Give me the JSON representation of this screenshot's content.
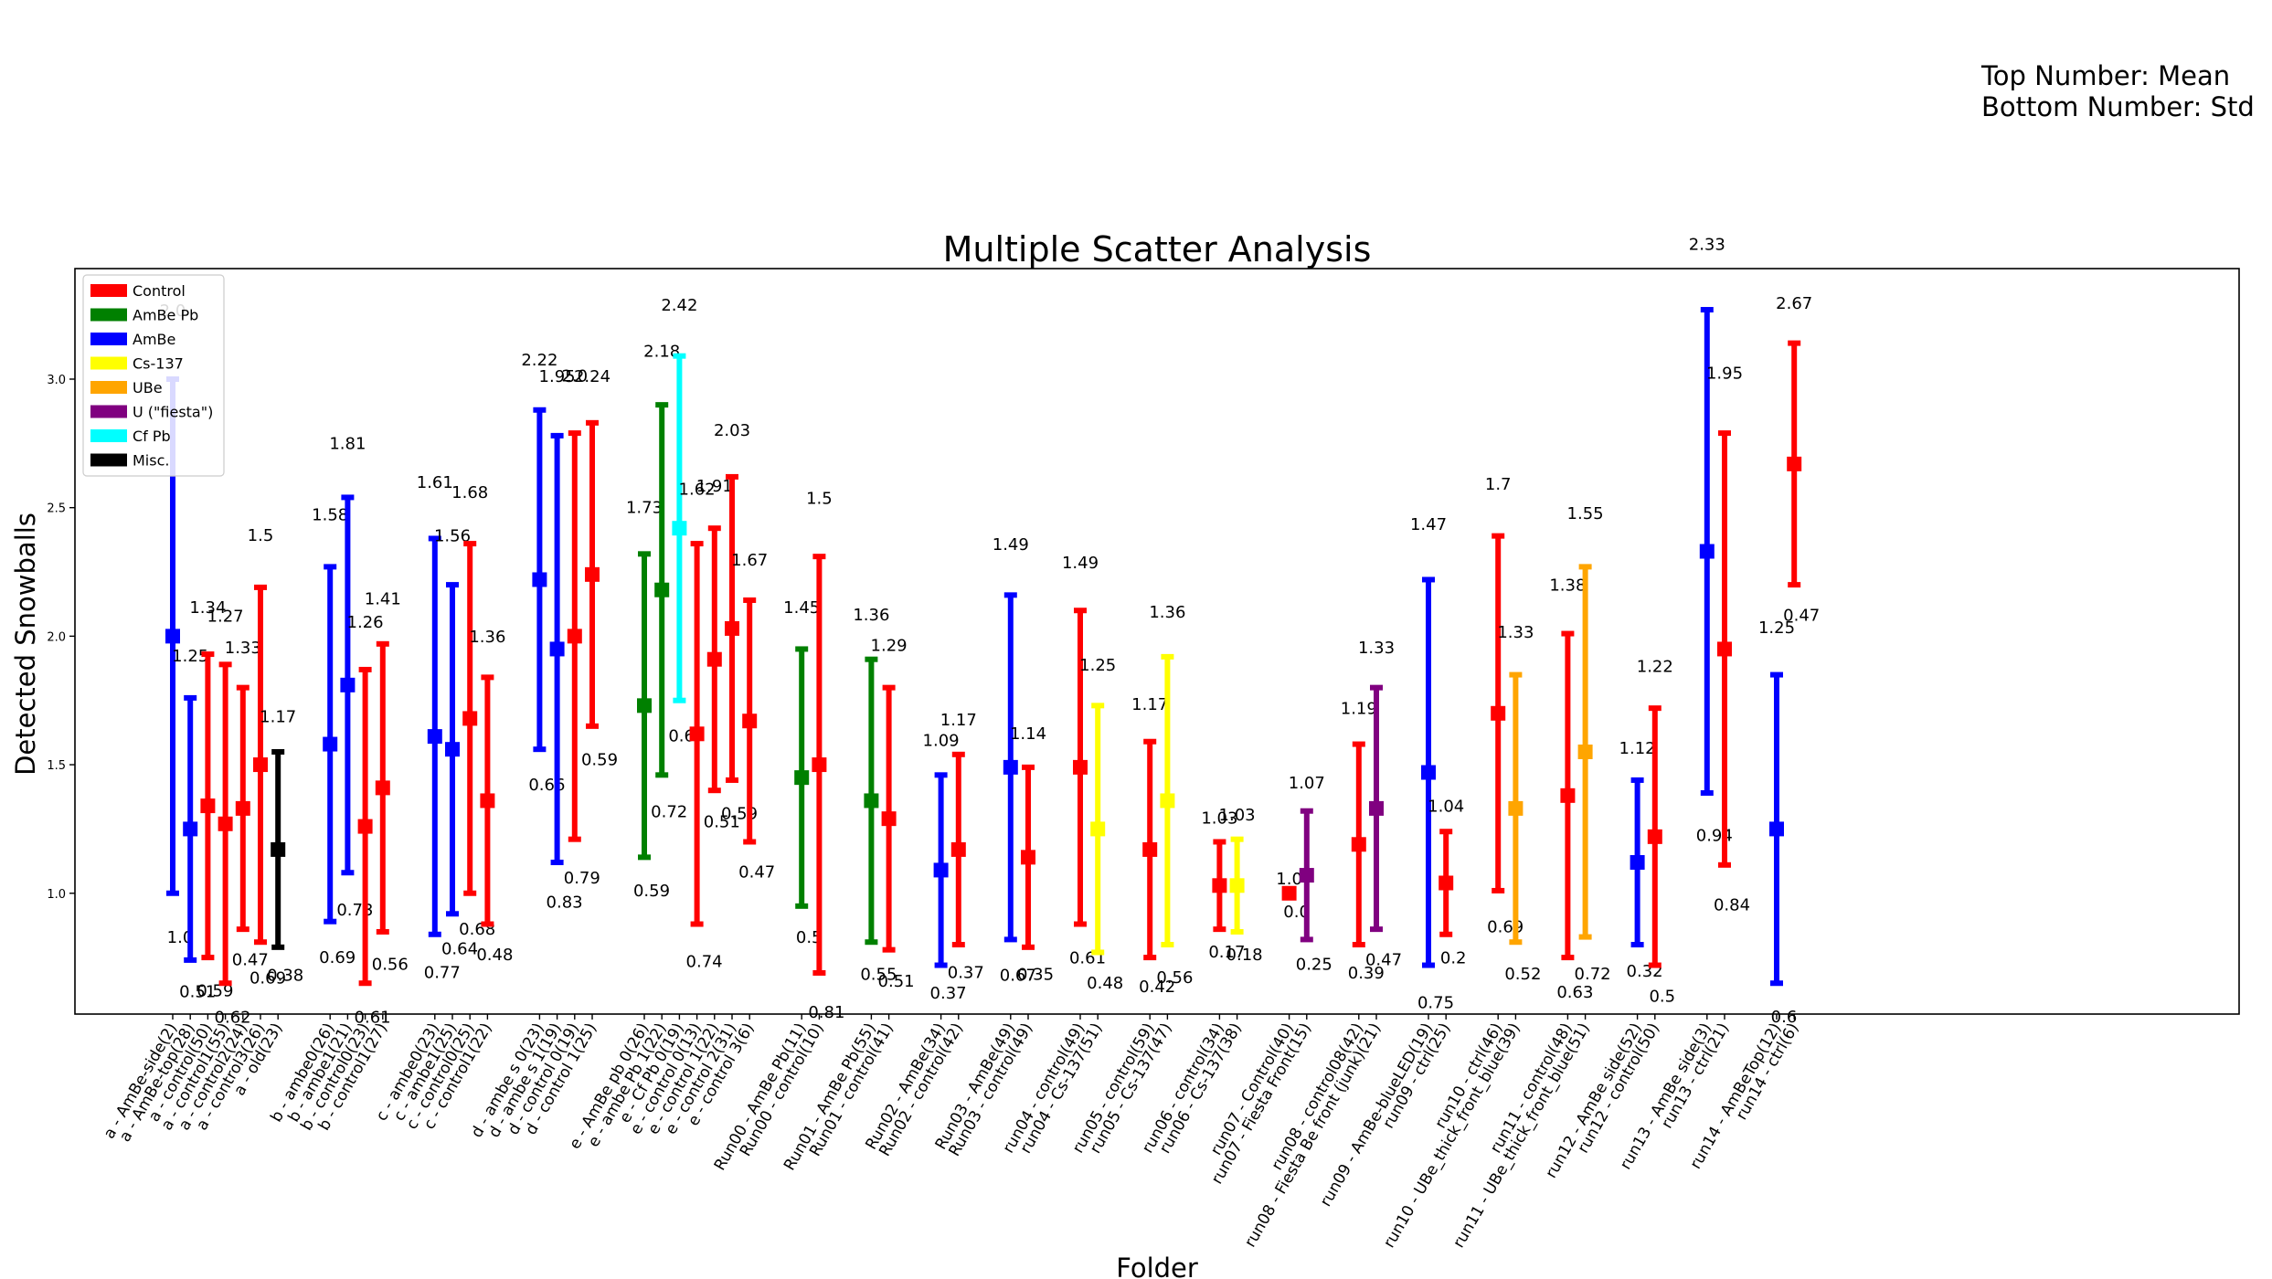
{
  "note": {
    "line1": "Top Number: Mean",
    "line2": "Bottom Number: Std"
  },
  "colors": {
    "Control": "#ff0000",
    "AmBe Pb": "#008000",
    "AmBe": "#0000ff",
    "Cs-137": "#ffff00",
    "UBe": "#ffa500",
    "U (\"fiesta\")": "#800080",
    "Cf Pb": "#00ffff",
    "Misc.": "#000000"
  },
  "chart_data": {
    "type": "scatter",
    "title": "Multiple Scatter Analysis",
    "xlabel": "Folder",
    "ylabel": "Detected Snowballs",
    "ylim": [
      0.53,
      3.43
    ],
    "yticks": [
      "1.0",
      "1.5",
      "2.0",
      "2.5",
      "3.0"
    ],
    "grid": false,
    "legend_position": "top-left",
    "legend": [
      "Control",
      "AmBe Pb",
      "AmBe",
      "Cs-137",
      "UBe",
      "U (\"fiesta\")",
      "Cf Pb",
      "Misc."
    ],
    "groups": [
      {
        "points": [
          {
            "label": "a - AmBe-side(2)",
            "category": "AmBe",
            "mean": 2.0,
            "std": 1.0,
            "mean_label": "2.0",
            "std_label": "1.0"
          },
          {
            "label": "a - AmBe-top(28)",
            "category": "AmBe",
            "mean": 1.25,
            "std": 0.51,
            "mean_label": "1.25",
            "std_label": "0.51"
          },
          {
            "label": "a - control(50)",
            "category": "Control",
            "mean": 1.34,
            "std": 0.59,
            "mean_label": "1.34",
            "std_label": "0.59"
          },
          {
            "label": "a - control1(55)",
            "category": "Control",
            "mean": 1.27,
            "std": 0.62,
            "mean_label": "1.27",
            "std_label": "0.62"
          },
          {
            "label": "a - control2(24)",
            "category": "Control",
            "mean": 1.33,
            "std": 0.47,
            "mean_label": "1.33",
            "std_label": "0.47"
          },
          {
            "label": "a - control3(26)",
            "category": "Control",
            "mean": 1.5,
            "std": 0.69,
            "mean_label": "1.5",
            "std_label": "0.69"
          },
          {
            "label": "a - old(23)",
            "category": "Misc.",
            "mean": 1.17,
            "std": 0.38,
            "mean_label": "1.17",
            "std_label": "0.38"
          }
        ]
      },
      {
        "points": [
          {
            "label": "b - ambe0(26)",
            "category": "AmBe",
            "mean": 1.58,
            "std": 0.69,
            "mean_label": "1.58",
            "std_label": "0.69"
          },
          {
            "label": "b - ambe1(21)",
            "category": "AmBe",
            "mean": 1.81,
            "std": 0.73,
            "mean_label": "1.81",
            "std_label": "0.73"
          },
          {
            "label": "b - control0(23)",
            "category": "Control",
            "mean": 1.26,
            "std": 0.61,
            "mean_label": "1.26",
            "std_label": "0.61"
          },
          {
            "label": "b - control1(27)",
            "category": "Control",
            "mean": 1.41,
            "std": 0.56,
            "mean_label": "1.41",
            "std_label": "0.56"
          }
        ]
      },
      {
        "points": [
          {
            "label": "c - ambe0(23)",
            "category": "AmBe",
            "mean": 1.61,
            "std": 0.77,
            "mean_label": "1.61",
            "std_label": "0.77"
          },
          {
            "label": "c - ambe1(25)",
            "category": "AmBe",
            "mean": 1.56,
            "std": 0.64,
            "mean_label": "1.56",
            "std_label": "0.64"
          },
          {
            "label": "c - control0(25)",
            "category": "Control",
            "mean": 1.68,
            "std": 0.68,
            "mean_label": "1.68",
            "std_label": "0.68"
          },
          {
            "label": "c - control1(22)",
            "category": "Control",
            "mean": 1.36,
            "std": 0.48,
            "mean_label": "1.36",
            "std_label": "0.48"
          }
        ]
      },
      {
        "points": [
          {
            "label": "d - ambe s 0(23)",
            "category": "AmBe",
            "mean": 2.22,
            "std": 0.66,
            "mean_label": "2.22",
            "std_label": "0.66"
          },
          {
            "label": "d - ambe s 1(19)",
            "category": "AmBe",
            "mean": 1.95,
            "std": 0.83,
            "mean_label": "1.95",
            "std_label": "0.83"
          },
          {
            "label": "d - control 0(19)",
            "category": "Control",
            "mean": 2.0,
            "std": 0.79,
            "mean_label": "2.0",
            "std_label": "0.79"
          },
          {
            "label": "d - control 1(25)",
            "category": "Control",
            "mean": 2.24,
            "std": 0.59,
            "mean_label": "2.24",
            "std_label": "0.59"
          }
        ]
      },
      {
        "points": [
          {
            "label": "e - AmBe pb 0(26)",
            "category": "AmBe Pb",
            "mean": 1.73,
            "std": 0.59,
            "mean_label": "1.73",
            "std_label": "0.59"
          },
          {
            "label": "e - ambe Pb 1(22)",
            "category": "AmBe Pb",
            "mean": 2.18,
            "std": 0.72,
            "mean_label": "2.18",
            "std_label": "0.72"
          },
          {
            "label": "e - Cf Pb 0(19)",
            "category": "Cf Pb",
            "mean": 2.42,
            "std": 0.67,
            "mean_label": "2.42",
            "std_label": "0.67"
          },
          {
            "label": "e - control 0(13)",
            "category": "Control",
            "mean": 1.62,
            "std": 0.74,
            "mean_label": "1.62",
            "std_label": "0.74"
          },
          {
            "label": "e - control 1(22)",
            "category": "Control",
            "mean": 1.91,
            "std": 0.51,
            "mean_label": "1.91",
            "std_label": "0.51"
          },
          {
            "label": "e - control 2(31)",
            "category": "Control",
            "mean": 2.03,
            "std": 0.59,
            "mean_label": "2.03",
            "std_label": "0.59"
          },
          {
            "label": "e - control 3(6)",
            "category": "Control",
            "mean": 1.67,
            "std": 0.47,
            "mean_label": "1.67",
            "std_label": "0.47"
          }
        ]
      },
      {
        "points": [
          {
            "label": "Run00 - AmBe Pb(11)",
            "category": "AmBe Pb",
            "mean": 1.45,
            "std": 0.5,
            "mean_label": "1.45",
            "std_label": "0.5"
          },
          {
            "label": "Run00 - control(10)",
            "category": "Control",
            "mean": 1.5,
            "std": 0.81,
            "mean_label": "1.5",
            "std_label": "0.81"
          }
        ]
      },
      {
        "points": [
          {
            "label": "Run01 - AmBe Pb(55)",
            "category": "AmBe Pb",
            "mean": 1.36,
            "std": 0.55,
            "mean_label": "1.36",
            "std_label": "0.55"
          },
          {
            "label": "Run01 - control(41)",
            "category": "Control",
            "mean": 1.29,
            "std": 0.51,
            "mean_label": "1.29",
            "std_label": "0.51"
          }
        ]
      },
      {
        "points": [
          {
            "label": "Run02 - AmBe(34)",
            "category": "AmBe",
            "mean": 1.09,
            "std": 0.37,
            "mean_label": "1.09",
            "std_label": "0.37"
          },
          {
            "label": "Run02 - control(42)",
            "category": "Control",
            "mean": 1.17,
            "std": 0.37,
            "mean_label": "1.17",
            "std_label": "0.37"
          }
        ]
      },
      {
        "points": [
          {
            "label": "Run03 - AmBe(49)",
            "category": "AmBe",
            "mean": 1.49,
            "std": 0.67,
            "mean_label": "1.49",
            "std_label": "0.67"
          },
          {
            "label": "Run03 - control(49)",
            "category": "Control",
            "mean": 1.14,
            "std": 0.35,
            "mean_label": "1.14",
            "std_label": "0.35"
          }
        ]
      },
      {
        "points": [
          {
            "label": "run04 - control(49)",
            "category": "Control",
            "mean": 1.49,
            "std": 0.61,
            "mean_label": "1.49",
            "std_label": "0.61"
          },
          {
            "label": "run04 - Cs-137(51)",
            "category": "Cs-137",
            "mean": 1.25,
            "std": 0.48,
            "mean_label": "1.25",
            "std_label": "0.48"
          }
        ]
      },
      {
        "points": [
          {
            "label": "run05 - control(59)",
            "category": "Control",
            "mean": 1.17,
            "std": 0.42,
            "mean_label": "1.17",
            "std_label": "0.42"
          },
          {
            "label": "run05 - Cs-137(47)",
            "category": "Cs-137",
            "mean": 1.36,
            "std": 0.56,
            "mean_label": "1.36",
            "std_label": "0.56"
          }
        ]
      },
      {
        "points": [
          {
            "label": "run06 - control(34)",
            "category": "Control",
            "mean": 1.03,
            "std": 0.17,
            "mean_label": "1.03",
            "std_label": "0.17"
          },
          {
            "label": "run06 - Cs-137(38)",
            "category": "Cs-137",
            "mean": 1.03,
            "std": 0.18,
            "mean_label": "1.03",
            "std_label": "0.18"
          }
        ]
      },
      {
        "points": [
          {
            "label": "run07 - Control(40)",
            "category": "Control",
            "mean": 1.0,
            "std": 0.0,
            "mean_label": "1.0",
            "std_label": "0.0"
          },
          {
            "label": "run07 - Fiesta Front(15)",
            "category": "U (\"fiesta\")",
            "mean": 1.07,
            "std": 0.25,
            "mean_label": "1.07",
            "std_label": "0.25"
          }
        ]
      },
      {
        "points": [
          {
            "label": "run08 - control08(42)",
            "category": "Control",
            "mean": 1.19,
            "std": 0.39,
            "mean_label": "1.19",
            "std_label": "0.39"
          },
          {
            "label": "run08 - Fiesta Be front (junk)(21)",
            "category": "U (\"fiesta\")",
            "mean": 1.33,
            "std": 0.47,
            "mean_label": "1.33",
            "std_label": "0.47"
          }
        ]
      },
      {
        "points": [
          {
            "label": "run09 - AmBe-blueLED(19)",
            "category": "AmBe",
            "mean": 1.47,
            "std": 0.75,
            "mean_label": "1.47",
            "std_label": "0.75"
          },
          {
            "label": "run09 - ctrl(25)",
            "category": "Control",
            "mean": 1.04,
            "std": 0.2,
            "mean_label": "1.04",
            "std_label": "0.2"
          }
        ]
      },
      {
        "points": [
          {
            "label": "run10 - ctrl(46)",
            "category": "Control",
            "mean": 1.7,
            "std": 0.69,
            "mean_label": "1.7",
            "std_label": "0.69"
          },
          {
            "label": "run10 - UBe_thick_front_blue(39)",
            "category": "UBe",
            "mean": 1.33,
            "std": 0.52,
            "mean_label": "1.33",
            "std_label": "0.52"
          }
        ]
      },
      {
        "points": [
          {
            "label": "run11 - control(48)",
            "category": "Control",
            "mean": 1.38,
            "std": 0.63,
            "mean_label": "1.38",
            "std_label": "0.63"
          },
          {
            "label": "run11 - UBe_thick_front_blue(51)",
            "category": "UBe",
            "mean": 1.55,
            "std": 0.72,
            "mean_label": "1.55",
            "std_label": "0.72"
          }
        ]
      },
      {
        "points": [
          {
            "label": "run12 - AmBe side(52)",
            "category": "AmBe",
            "mean": 1.12,
            "std": 0.32,
            "mean_label": "1.12",
            "std_label": "0.32"
          },
          {
            "label": "run12 - control(50)",
            "category": "Control",
            "mean": 1.22,
            "std": 0.5,
            "mean_label": "1.22",
            "std_label": "0.5"
          }
        ]
      },
      {
        "points": [
          {
            "label": "run13 - AmBe side(3)",
            "category": "AmBe",
            "mean": 2.33,
            "std": 0.94,
            "mean_label": "2.33",
            "std_label": "0.94"
          },
          {
            "label": "run13 - ctrl(21)",
            "category": "Control",
            "mean": 1.95,
            "std": 0.84,
            "mean_label": "1.95",
            "std_label": "0.84"
          }
        ]
      },
      {
        "points": [
          {
            "label": "run14 - AmBeTop(12)",
            "category": "AmBe",
            "mean": 1.25,
            "std": 0.6,
            "mean_label": "1.25",
            "std_label": "0.6"
          },
          {
            "label": "run14 - ctrl(6)",
            "category": "Control",
            "mean": 2.67,
            "std": 0.47,
            "mean_label": "2.67",
            "std_label": "0.47"
          }
        ]
      }
    ]
  }
}
